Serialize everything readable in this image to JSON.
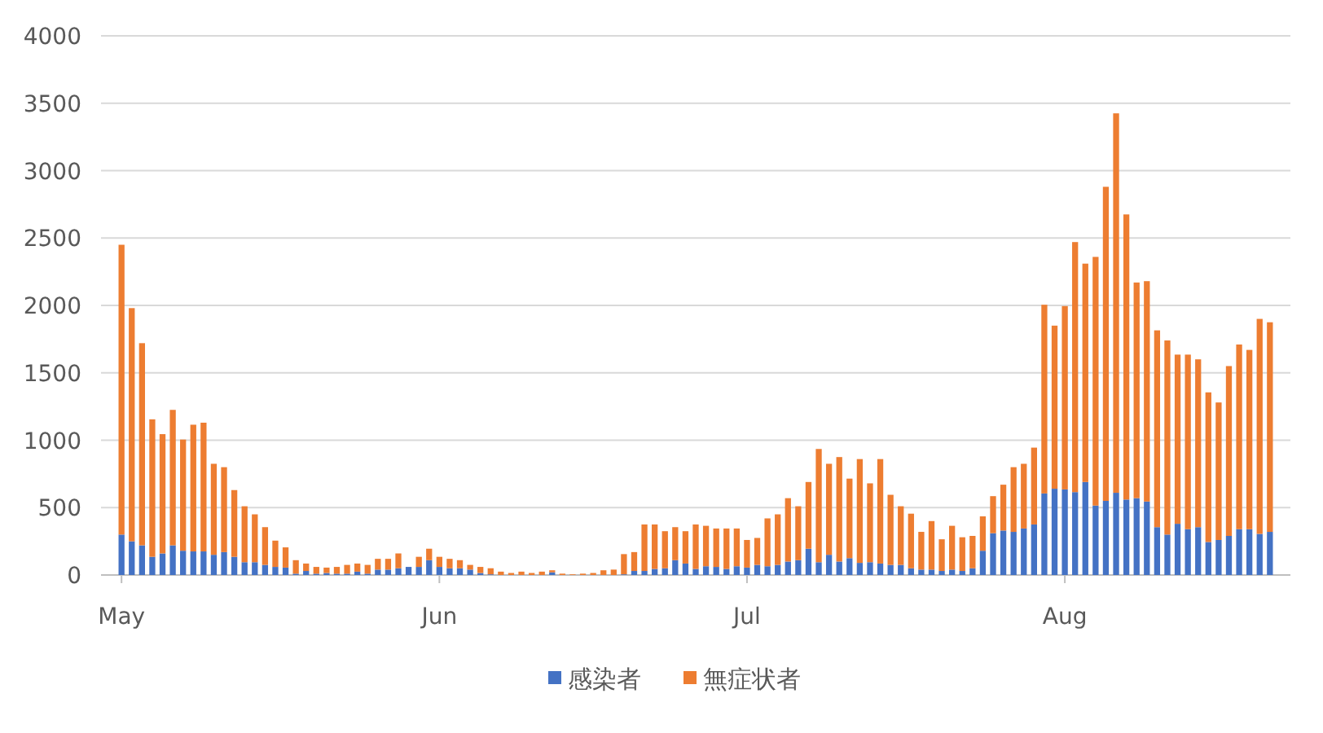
{
  "chart_data": {
    "type": "bar",
    "stacked": true,
    "grid": "y",
    "legend": "bottom",
    "x": [
      "--05-01",
      "--05-02",
      "--05-03",
      "--05-04",
      "--05-05",
      "--05-06",
      "--05-07",
      "--05-08",
      "--05-09",
      "--05-10",
      "--05-11",
      "--05-12",
      "--05-13",
      "--05-14",
      "--05-15",
      "--05-16",
      "--05-17",
      "--05-18",
      "--05-19",
      "--05-20",
      "--05-21",
      "--05-22",
      "--05-23",
      "--05-24",
      "--05-25",
      "--05-26",
      "--05-27",
      "--05-28",
      "--05-29",
      "--05-30",
      "--05-31",
      "--06-01",
      "--06-02",
      "--06-03",
      "--06-04",
      "--06-05",
      "--06-06",
      "--06-07",
      "--06-08",
      "--06-09",
      "--06-10",
      "--06-11",
      "--06-12",
      "--06-13",
      "--06-14",
      "--06-15",
      "--06-16",
      "--06-17",
      "--06-18",
      "--06-19",
      "--06-20",
      "--06-21",
      "--06-22",
      "--06-23",
      "--06-24",
      "--06-25",
      "--06-26",
      "--06-27",
      "--06-28",
      "--06-29",
      "--06-30",
      "--07-01",
      "--07-02",
      "--07-03",
      "--07-04",
      "--07-05",
      "--07-06",
      "--07-07",
      "--07-08",
      "--07-09",
      "--07-10",
      "--07-11",
      "--07-12",
      "--07-13",
      "--07-14",
      "--07-15",
      "--07-16",
      "--07-17",
      "--07-18",
      "--07-19",
      "--07-20",
      "--07-21",
      "--07-22",
      "--07-23",
      "--07-24",
      "--07-25",
      "--07-26",
      "--07-27",
      "--07-28",
      "--07-29",
      "--07-30",
      "--07-31",
      "--08-01",
      "--08-02",
      "--08-03",
      "--08-04",
      "--08-05",
      "--08-06",
      "--08-07",
      "--08-08",
      "--08-09",
      "--08-10",
      "--08-11",
      "--08-12",
      "--08-13",
      "--08-14",
      "--08-15",
      "--08-16",
      "--08-17",
      "--08-18",
      "--08-19",
      "--08-20",
      "--08-21"
    ],
    "xlim": [
      "--04-29",
      "--08-23"
    ],
    "xticks": [
      {
        "value": "--05-01",
        "label": "May"
      },
      {
        "value": "--06-01",
        "label": "Jun"
      },
      {
        "value": "--07-01",
        "label": "Jul"
      },
      {
        "value": "--08-01",
        "label": "Aug"
      }
    ],
    "ylim": [
      0,
      4000
    ],
    "yticks": [
      0,
      500,
      1000,
      1500,
      2000,
      2500,
      3000,
      3500,
      4000
    ],
    "series": [
      {
        "name": "感染者",
        "color": "#4472c4",
        "values": [
          300,
          250,
          220,
          135,
          160,
          220,
          180,
          175,
          175,
          150,
          170,
          135,
          95,
          95,
          75,
          60,
          55,
          10,
          30,
          10,
          15,
          10,
          10,
          25,
          10,
          40,
          40,
          50,
          60,
          60,
          110,
          60,
          50,
          50,
          40,
          15,
          5,
          0,
          0,
          0,
          0,
          0,
          20,
          0,
          0,
          0,
          0,
          0,
          0,
          5,
          30,
          30,
          45,
          50,
          110,
          85,
          45,
          65,
          60,
          45,
          65,
          55,
          75,
          65,
          75,
          100,
          110,
          195,
          95,
          150,
          100,
          125,
          90,
          95,
          85,
          75,
          75,
          50,
          40,
          40,
          30,
          40,
          30,
          50,
          180,
          310,
          330,
          320,
          345,
          375,
          605,
          640,
          635,
          615,
          690,
          515,
          550,
          610,
          560,
          570,
          545,
          355,
          300,
          380,
          340,
          355,
          245,
          260,
          290,
          340,
          340,
          305,
          320
        ]
      },
      {
        "name": "無症状者",
        "color": "#ed7d31",
        "values": [
          2150,
          1730,
          1500,
          1020,
          885,
          1005,
          825,
          940,
          955,
          675,
          630,
          495,
          415,
          355,
          280,
          195,
          150,
          100,
          55,
          50,
          40,
          50,
          65,
          60,
          65,
          80,
          80,
          110,
          0,
          75,
          85,
          75,
          70,
          60,
          35,
          45,
          45,
          25,
          15,
          25,
          15,
          25,
          15,
          10,
          5,
          10,
          15,
          35,
          40,
          150,
          140,
          345,
          330,
          275,
          245,
          240,
          330,
          300,
          285,
          300,
          280,
          205,
          200,
          355,
          375,
          470,
          400,
          495,
          840,
          675,
          775,
          590,
          770,
          585,
          775,
          520,
          435,
          405,
          280,
          360,
          235,
          325,
          250,
          240,
          255,
          275,
          340,
          480,
          480,
          570,
          1400,
          1210,
          1360,
          1855,
          1620,
          1845,
          2330,
          2815,
          2115,
          1600,
          1635,
          1460,
          1440,
          1255,
          1295,
          1245,
          1110,
          1020,
          1260,
          1370,
          1330,
          1595,
          1555
        ]
      }
    ]
  }
}
